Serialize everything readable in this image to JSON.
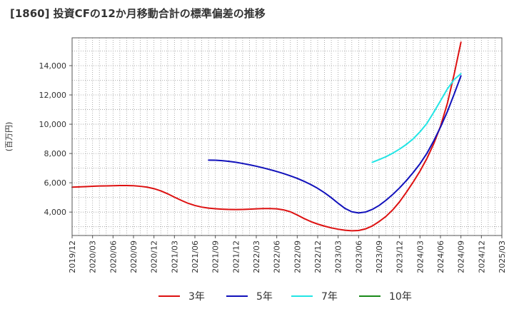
{
  "chart_data": {
    "type": "line",
    "title": "[1860]  投資CFの12か月移動合計の標準偏差の推移",
    "ylabel": "(百万円)",
    "xlabel": "",
    "x_ticks": [
      "2019/12",
      "2020/03",
      "2020/06",
      "2020/09",
      "2020/12",
      "2021/03",
      "2021/06",
      "2021/09",
      "2021/12",
      "2022/03",
      "2022/06",
      "2022/09",
      "2022/12",
      "2023/03",
      "2023/06",
      "2023/09",
      "2023/12",
      "2024/03",
      "2024/06",
      "2024/09",
      "2024/12",
      "2025/03"
    ],
    "y_ticks": [
      "4,000",
      "6,000",
      "8,000",
      "10,000",
      "12,000",
      "14,000"
    ],
    "ylim": [
      2400,
      15900
    ],
    "grid": true,
    "legend_position": "bottom",
    "series": [
      {
        "name": "3年",
        "color": "#dd1111",
        "x": [
          "2019/12",
          "2020/01",
          "2020/02",
          "2020/03",
          "2020/04",
          "2020/05",
          "2020/06",
          "2020/07",
          "2020/08",
          "2020/09",
          "2020/10",
          "2020/11",
          "2020/12",
          "2021/01",
          "2021/02",
          "2021/03",
          "2021/04",
          "2021/05",
          "2021/06",
          "2021/07",
          "2021/08",
          "2021/09",
          "2021/10",
          "2021/11",
          "2021/12",
          "2022/01",
          "2022/02",
          "2022/03",
          "2022/04",
          "2022/05",
          "2022/06",
          "2022/07",
          "2022/08",
          "2022/09",
          "2022/10",
          "2022/11",
          "2022/12",
          "2023/01",
          "2023/02",
          "2023/03",
          "2023/04",
          "2023/05",
          "2023/06",
          "2023/07",
          "2023/08",
          "2023/09",
          "2023/10",
          "2023/11",
          "2023/12",
          "2024/01",
          "2024/02",
          "2024/03",
          "2024/04",
          "2024/05",
          "2024/06",
          "2024/07",
          "2024/08",
          "2024/09"
        ],
        "values": [
          5700,
          5720,
          5740,
          5760,
          5780,
          5790,
          5800,
          5810,
          5810,
          5800,
          5760,
          5700,
          5600,
          5450,
          5250,
          5020,
          4800,
          4600,
          4450,
          4340,
          4270,
          4230,
          4200,
          4180,
          4170,
          4180,
          4200,
          4220,
          4240,
          4240,
          4220,
          4150,
          4020,
          3800,
          3560,
          3350,
          3180,
          3040,
          2920,
          2830,
          2760,
          2720,
          2740,
          2850,
          3050,
          3350,
          3700,
          4150,
          4700,
          5350,
          6050,
          6800,
          7650,
          8650,
          9850,
          11400,
          13400,
          15600
        ]
      },
      {
        "name": "5年",
        "color": "#1111bb",
        "x": [
          "2021/08",
          "2021/09",
          "2021/10",
          "2021/11",
          "2021/12",
          "2022/01",
          "2022/02",
          "2022/03",
          "2022/04",
          "2022/05",
          "2022/06",
          "2022/07",
          "2022/08",
          "2022/09",
          "2022/10",
          "2022/11",
          "2022/12",
          "2023/01",
          "2023/02",
          "2023/03",
          "2023/04",
          "2023/05",
          "2023/06",
          "2023/07",
          "2023/08",
          "2023/09",
          "2023/10",
          "2023/11",
          "2023/12",
          "2024/01",
          "2024/02",
          "2024/03",
          "2024/04",
          "2024/05",
          "2024/06",
          "2024/07",
          "2024/08",
          "2024/09"
        ],
        "values": [
          7550,
          7540,
          7510,
          7460,
          7400,
          7320,
          7230,
          7130,
          7020,
          6900,
          6770,
          6630,
          6470,
          6300,
          6100,
          5880,
          5620,
          5320,
          4980,
          4600,
          4250,
          4020,
          3940,
          4000,
          4180,
          4450,
          4800,
          5200,
          5650,
          6150,
          6700,
          7300,
          8000,
          8850,
          9800,
          10850,
          12050,
          13300
        ]
      },
      {
        "name": "7年",
        "color": "#22e5e5",
        "x": [
          "2023/08",
          "2023/09",
          "2023/10",
          "2023/11",
          "2023/12",
          "2024/01",
          "2024/02",
          "2024/03",
          "2024/04",
          "2024/05",
          "2024/06",
          "2024/07",
          "2024/08",
          "2024/09"
        ],
        "values": [
          7400,
          7580,
          7780,
          8020,
          8300,
          8620,
          9000,
          9480,
          10050,
          10800,
          11600,
          12400,
          13050,
          13450
        ]
      },
      {
        "name": "10年",
        "color": "#1a8a1a",
        "x": [],
        "values": []
      }
    ]
  }
}
